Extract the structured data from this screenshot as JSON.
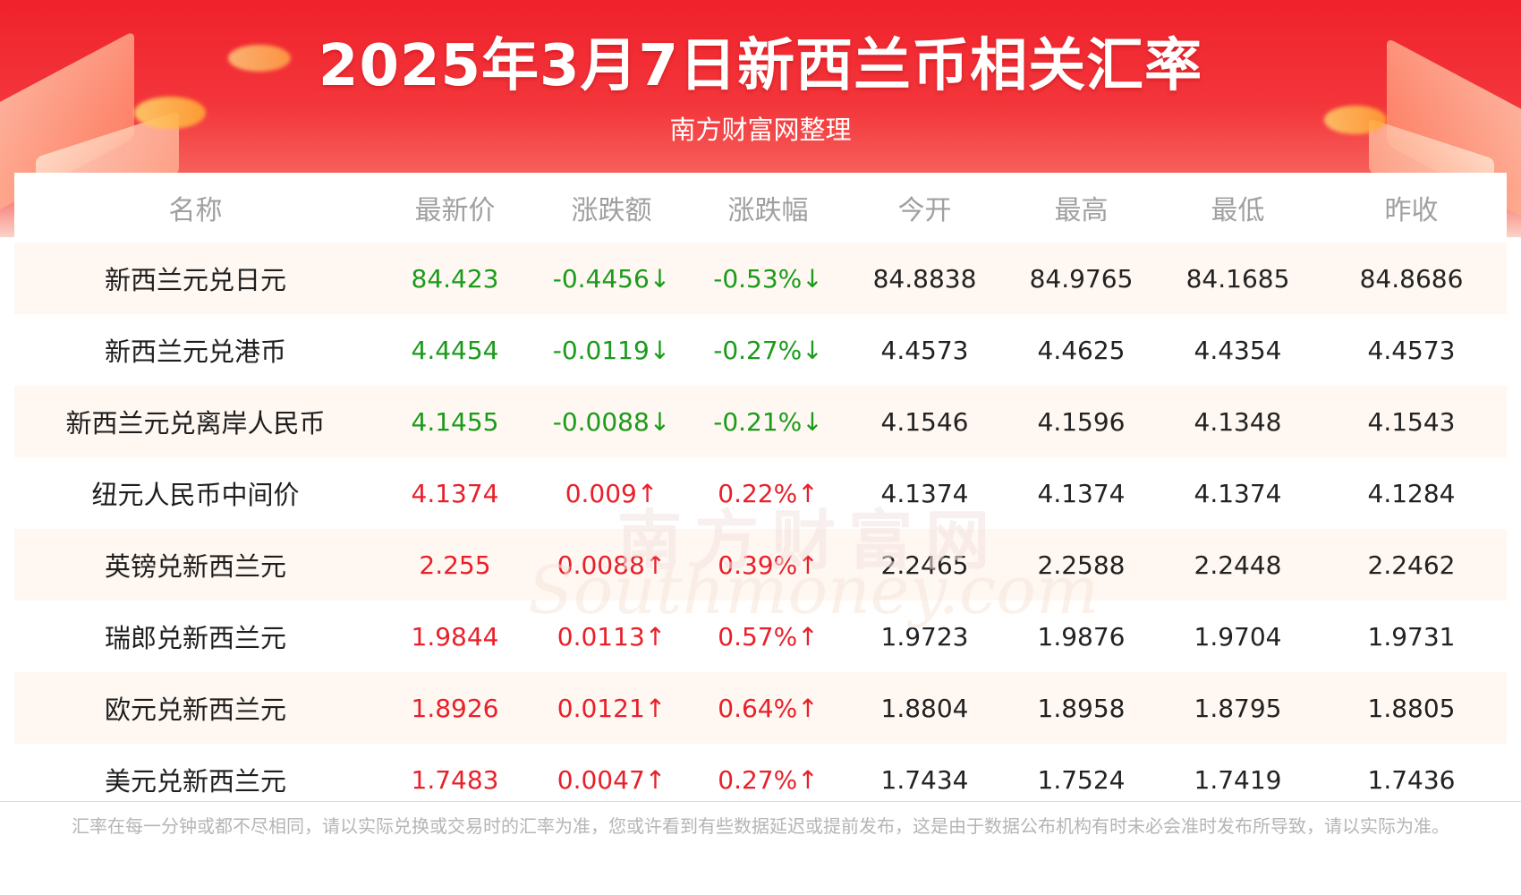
{
  "header": {
    "title": "2025年3月7日新西兰币相关汇率",
    "subtitle": "南方财富网整理"
  },
  "watermark": {
    "cn": "南方财富网",
    "en": "Southmoney.com"
  },
  "table": {
    "columns": [
      "名称",
      "最新价",
      "涨跌额",
      "涨跌幅",
      "今开",
      "最高",
      "最低",
      "昨收"
    ],
    "rows": [
      {
        "name": "新西兰元兑日元",
        "latest": "84.423",
        "change": "-0.4456↓",
        "pct": "-0.53%↓",
        "open": "84.8838",
        "high": "84.9765",
        "low": "84.1685",
        "prev_close": "84.8686",
        "direction": "down"
      },
      {
        "name": "新西兰元兑港币",
        "latest": "4.4454",
        "change": "-0.0119↓",
        "pct": "-0.27%↓",
        "open": "4.4573",
        "high": "4.4625",
        "low": "4.4354",
        "prev_close": "4.4573",
        "direction": "down"
      },
      {
        "name": "新西兰元兑离岸人民币",
        "latest": "4.1455",
        "change": "-0.0088↓",
        "pct": "-0.21%↓",
        "open": "4.1546",
        "high": "4.1596",
        "low": "4.1348",
        "prev_close": "4.1543",
        "direction": "down"
      },
      {
        "name": "纽元人民币中间价",
        "latest": "4.1374",
        "change": "0.009↑",
        "pct": "0.22%↑",
        "open": "4.1374",
        "high": "4.1374",
        "low": "4.1374",
        "prev_close": "4.1284",
        "direction": "up"
      },
      {
        "name": "英镑兑新西兰元",
        "latest": "2.255",
        "change": "0.0088↑",
        "pct": "0.39%↑",
        "open": "2.2465",
        "high": "2.2588",
        "low": "2.2448",
        "prev_close": "2.2462",
        "direction": "up"
      },
      {
        "name": "瑞郎兑新西兰元",
        "latest": "1.9844",
        "change": "0.0113↑",
        "pct": "0.57%↑",
        "open": "1.9723",
        "high": "1.9876",
        "low": "1.9704",
        "prev_close": "1.9731",
        "direction": "up"
      },
      {
        "name": "欧元兑新西兰元",
        "latest": "1.8926",
        "change": "0.0121↑",
        "pct": "0.64%↑",
        "open": "1.8804",
        "high": "1.8958",
        "low": "1.8795",
        "prev_close": "1.8805",
        "direction": "up"
      },
      {
        "name": "美元兑新西兰元",
        "latest": "1.7483",
        "change": "0.0047↑",
        "pct": "0.27%↑",
        "open": "1.7434",
        "high": "1.7524",
        "low": "1.7419",
        "prev_close": "1.7436",
        "direction": "up"
      }
    ]
  },
  "colors": {
    "up": "#e8202a",
    "down": "#1a9b1a",
    "banner": "#f0222c"
  },
  "footnote": "汇率在每一分钟或都不尽相同，请以实际兑换或交易时的汇率为准，您或许看到有些数据延迟或提前发布，这是由于数据公布机构有时未必会准时发布所导致，请以实际为准。"
}
